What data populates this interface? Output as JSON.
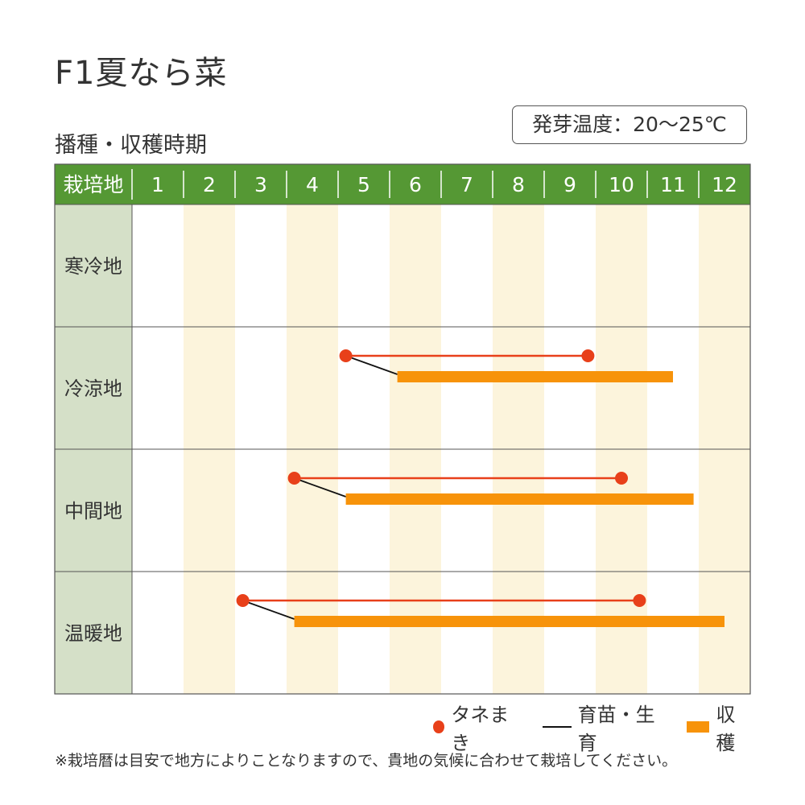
{
  "title": "F1夏なら菜",
  "subtitle": "播種・収穫時期",
  "temperature": "発芽温度：20〜25℃",
  "note": "※栽培暦は目安で地方によりことなりますので、貴地の気候に合わせて栽培してください。",
  "colors": {
    "header": "#559834",
    "region_cell": "#d5e0c8",
    "stripe": "#fcf4dc",
    "sowing": "#e8401a",
    "harvest": "#f7930a",
    "growing": "#111111",
    "grid": "#555555"
  },
  "chart_data": {
    "type": "gantt",
    "header_label": "栽培地",
    "months": [
      "1",
      "2",
      "3",
      "4",
      "5",
      "6",
      "7",
      "8",
      "9",
      "10",
      "11",
      "12"
    ],
    "regions": [
      {
        "name": "寒冷地",
        "sowing": null,
        "harvest": null
      },
      {
        "name": "冷涼地",
        "sowing": [
          5.15,
          9.85
        ],
        "harvest": [
          6.15,
          11.5
        ]
      },
      {
        "name": "中間地",
        "sowing": [
          4.15,
          10.5
        ],
        "harvest": [
          5.15,
          11.9
        ]
      },
      {
        "name": "温暖地",
        "sowing": [
          3.15,
          10.85
        ],
        "harvest": [
          4.15,
          12.5
        ]
      }
    ],
    "legend": [
      {
        "key": "sowing",
        "label": "タネまき",
        "marker": "dot"
      },
      {
        "key": "growing",
        "label": "育苗・生育",
        "marker": "line"
      },
      {
        "key": "harvest",
        "label": "収穫",
        "marker": "bar"
      }
    ]
  }
}
